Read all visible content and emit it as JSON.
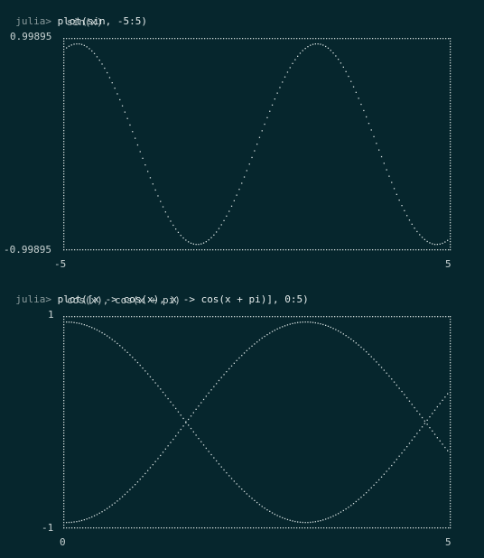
{
  "terminal": {
    "prompt": "julia>",
    "background": "#06262d",
    "foreground": "#c8d2d2"
  },
  "plots": [
    {
      "command": "plot(sin, -5:5)",
      "subtitle": "sin(x)",
      "y_max_label": "0.99895",
      "y_min_label": "-0.99895",
      "x_min_label": "-5",
      "x_max_label": "5"
    },
    {
      "command": "plot([x -> cos(x), x -> cos(x + pi)], 0:5)",
      "subtitle": "cos(x), cos(x + pi)",
      "y_max_label": "1",
      "y_min_label": "-1",
      "x_min_label": "0",
      "x_max_label": "5"
    }
  ],
  "chart_data": [
    {
      "type": "line",
      "series": [
        {
          "name": "sin(x)",
          "function": "sin"
        }
      ],
      "xlim": [
        -5,
        5
      ],
      "ylim": [
        -0.99895,
        0.99895
      ],
      "grid": false
    },
    {
      "type": "line",
      "series": [
        {
          "name": "cos(x)",
          "function": "cos"
        },
        {
          "name": "cos(x + pi)",
          "function": "cos_plus_pi"
        }
      ],
      "xlim": [
        0,
        5
      ],
      "ylim": [
        -1,
        1
      ],
      "grid": false
    }
  ]
}
